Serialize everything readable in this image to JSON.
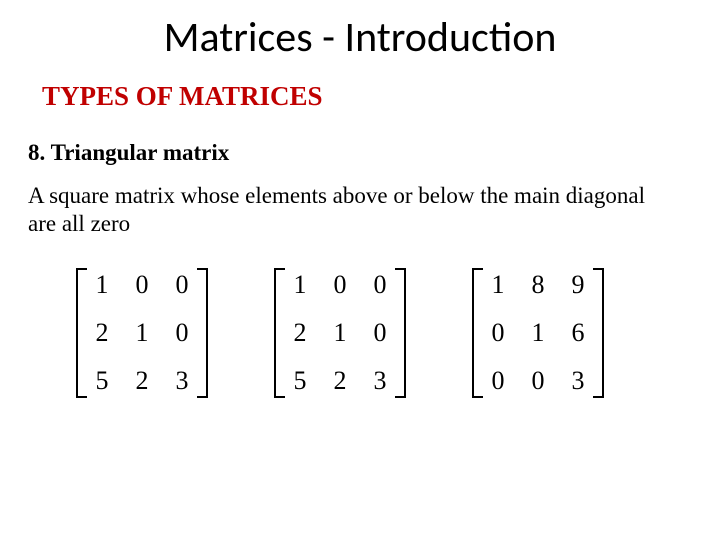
{
  "title": "Matrices - Introduction",
  "subtitle": "TYPES OF MATRICES",
  "section": "8. Triangular matrix",
  "body": "A square matrix whose elements above or below the main diagonal are all zero",
  "colors": {
    "subtitle": "#c00000",
    "text": "#000000",
    "background": "#ffffff"
  },
  "fonts": {
    "title_family": "Calibri",
    "body_family": "Times New Roman",
    "title_size_pt": 32,
    "subtitle_size_pt": 20,
    "section_size_pt": 17,
    "body_size_pt": 17,
    "matrix_size_pt": 20
  },
  "matrices": [
    {
      "rows": [
        [
          "1",
          "0",
          "0"
        ],
        [
          "2",
          "1",
          "0"
        ],
        [
          "5",
          "2",
          "3"
        ]
      ]
    },
    {
      "rows": [
        [
          "1",
          "0",
          "0"
        ],
        [
          "2",
          "1",
          "0"
        ],
        [
          "5",
          "2",
          "3"
        ]
      ]
    },
    {
      "rows": [
        [
          "1",
          "8",
          "9"
        ],
        [
          "0",
          "1",
          "6"
        ],
        [
          "0",
          "0",
          "3"
        ]
      ]
    }
  ]
}
